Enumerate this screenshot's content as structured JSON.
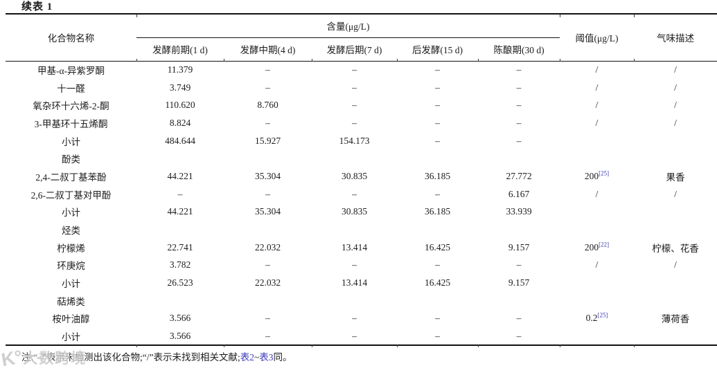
{
  "page": {
    "title": "续表 1",
    "note": {
      "prefix": "注:“–”表示未检测出该化合物;“/”表示未找到相关文献;",
      "table2_link": "表2",
      "tilde": "~",
      "table3_link": "表3",
      "suffix": "同。"
    },
    "watermark": {
      "icon": "K°",
      "text": "大数跨境"
    }
  },
  "table": {
    "header": {
      "compound": "化合物名称",
      "content_group": "含量(μg/L)",
      "periods": [
        "发酵前期(1 d)",
        "发酵中期(4 d)",
        "发酵后期(7 d)",
        "后发酵(15 d)",
        "陈酿期(30 d)"
      ],
      "threshold": "阈值(μg/L)",
      "odor": "气味描述"
    },
    "rows": [
      {
        "name": "甲基-α-异紫罗酮",
        "section": false,
        "values": [
          "11.379",
          "–",
          "–",
          "–",
          "–"
        ],
        "threshold": "/",
        "threshold_ref": "",
        "odor": "/"
      },
      {
        "name": "十一醛",
        "section": false,
        "values": [
          "3.749",
          "–",
          "–",
          "–",
          "–"
        ],
        "threshold": "/",
        "threshold_ref": "",
        "odor": "/"
      },
      {
        "name": "氧杂环十六烯-2-酮",
        "section": false,
        "values": [
          "110.620",
          "8.760",
          "–",
          "–",
          "–"
        ],
        "threshold": "/",
        "threshold_ref": "",
        "odor": "/"
      },
      {
        "name": "3-甲基环十五烯酮",
        "section": false,
        "values": [
          "8.824",
          "–",
          "–",
          "–",
          "–"
        ],
        "threshold": "/",
        "threshold_ref": "",
        "odor": "/"
      },
      {
        "name": "小计",
        "section": false,
        "values": [
          "484.644",
          "15.927",
          "154.173",
          "–",
          "–"
        ],
        "threshold": "",
        "threshold_ref": "",
        "odor": ""
      },
      {
        "name": "酚类",
        "section": true,
        "values": [
          "",
          "",
          "",
          "",
          ""
        ],
        "threshold": "",
        "threshold_ref": "",
        "odor": ""
      },
      {
        "name": "2,4-二叔丁基苯酚",
        "section": false,
        "values": [
          "44.221",
          "35.304",
          "30.835",
          "36.185",
          "27.772"
        ],
        "threshold": "200",
        "threshold_ref": "[25]",
        "odor": "果香"
      },
      {
        "name": "2,6-二叔丁基对甲酚",
        "section": false,
        "values": [
          "–",
          "–",
          "–",
          "–",
          "6.167"
        ],
        "threshold": "/",
        "threshold_ref": "",
        "odor": "/"
      },
      {
        "name": "小计",
        "section": false,
        "values": [
          "44.221",
          "35.304",
          "30.835",
          "36.185",
          "33.939"
        ],
        "threshold": "",
        "threshold_ref": "",
        "odor": ""
      },
      {
        "name": "烃类",
        "section": true,
        "values": [
          "",
          "",
          "",
          "",
          ""
        ],
        "threshold": "",
        "threshold_ref": "",
        "odor": ""
      },
      {
        "name": "柠檬烯",
        "section": false,
        "values": [
          "22.741",
          "22.032",
          "13.414",
          "16.425",
          "9.157"
        ],
        "threshold": "200",
        "threshold_ref": "[22]",
        "odor": "柠檬、花香"
      },
      {
        "name": "环庚烷",
        "section": false,
        "values": [
          "3.782",
          "–",
          "–",
          "–",
          "–"
        ],
        "threshold": "/",
        "threshold_ref": "",
        "odor": "/"
      },
      {
        "name": "小计",
        "section": false,
        "values": [
          "26.523",
          "22.032",
          "13.414",
          "16.425",
          "9.157"
        ],
        "threshold": "",
        "threshold_ref": "",
        "odor": ""
      },
      {
        "name": "萜烯类",
        "section": true,
        "values": [
          "",
          "",
          "",
          "",
          ""
        ],
        "threshold": "",
        "threshold_ref": "",
        "odor": ""
      },
      {
        "name": "桉叶油醇",
        "section": false,
        "values": [
          "3.566",
          "–",
          "–",
          "–",
          "–"
        ],
        "threshold": "0.2",
        "threshold_ref": "[25]",
        "odor": "薄荷香"
      },
      {
        "name": "小计",
        "section": false,
        "values": [
          "3.566",
          "–",
          "–",
          "–",
          "–"
        ],
        "threshold": "",
        "threshold_ref": "",
        "odor": ""
      }
    ]
  }
}
